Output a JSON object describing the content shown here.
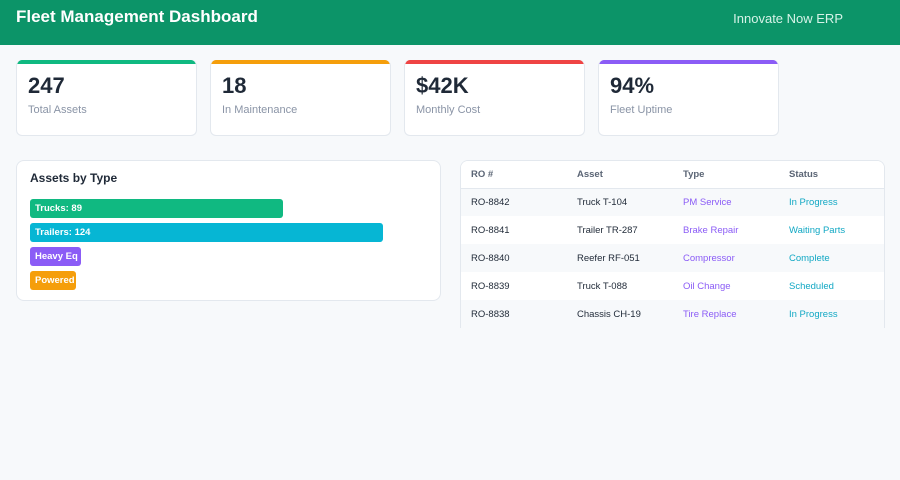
{
  "header": {
    "title": "Fleet Management Dashboard",
    "brand": "Innovate Now ERP"
  },
  "kpis": [
    {
      "value": "247",
      "label": "Total Assets",
      "color": "#10b981"
    },
    {
      "value": "18",
      "label": "In Maintenance",
      "color": "#f59e0b"
    },
    {
      "value": "$42K",
      "label": "Monthly Cost",
      "color": "#ef4444"
    },
    {
      "value": "94%",
      "label": "Fleet Uptime",
      "color": "#8b5cf6"
    }
  ],
  "chart": {
    "title": "Assets by Type"
  },
  "chart_data": {
    "type": "bar",
    "orientation": "horizontal",
    "title": "Assets by Type",
    "xlim": [
      0,
      130
    ],
    "categories": [
      "Trucks",
      "Trailers",
      "Heavy Eq",
      "Powered"
    ],
    "values": [
      89,
      124,
      18,
      16
    ],
    "labels": [
      "Trucks: 89",
      "Trailers: 124",
      "Heavy Eq",
      "Powered"
    ],
    "colors": [
      "#10b981",
      "#06b6d4",
      "#8b5cf6",
      "#f59e0b"
    ]
  },
  "table": {
    "columns": [
      "RO #",
      "Asset",
      "Type",
      "Status"
    ],
    "rows": [
      {
        "ro": "RO-8842",
        "asset": "Truck T-104",
        "type": "PM Service",
        "status": "In Progress"
      },
      {
        "ro": "RO-8841",
        "asset": "Trailer TR-287",
        "type": "Brake Repair",
        "status": "Waiting Parts"
      },
      {
        "ro": "RO-8840",
        "asset": "Reefer RF-051",
        "type": "Compressor",
        "status": "Complete"
      },
      {
        "ro": "RO-8839",
        "asset": "Truck T-088",
        "type": "Oil Change",
        "status": "Scheduled"
      },
      {
        "ro": "RO-8838",
        "asset": "Chassis CH-19",
        "type": "Tire Replace",
        "status": "In Progress"
      }
    ]
  }
}
